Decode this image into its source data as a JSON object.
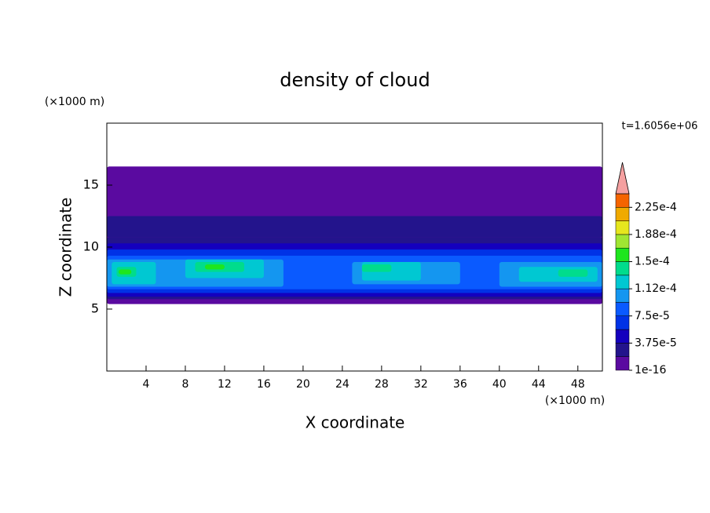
{
  "chart_data": {
    "type": "contour",
    "title": "density of cloud",
    "xlabel": "X coordinate",
    "ylabel": "Z coordinate",
    "x_unit": "(×1000 m)",
    "y_unit": "(×1000 m)",
    "time_label": "t=1.6056e+06",
    "xlim": [
      0,
      50.5
    ],
    "ylim": [
      0,
      20
    ],
    "xticks": [
      4,
      8,
      12,
      16,
      20,
      24,
      28,
      32,
      36,
      40,
      44,
      48
    ],
    "yticks": [
      5,
      10,
      15
    ],
    "levels": [
      1e-16,
      1.875e-05,
      3.75e-05,
      5.625e-05,
      7.5e-05,
      9.375e-05,
      0.0001125,
      0.00013125,
      0.00015,
      0.00016875,
      0.0001875,
      0.00020625,
      0.000225,
      0.00024375
    ],
    "colors": [
      "#5a0aa0",
      "#23148c",
      "#1400be",
      "#0032e6",
      "#0a5aff",
      "#1496f0",
      "#00c8d2",
      "#00dc8c",
      "#1ee61e",
      "#a0e632",
      "#e6e61e",
      "#f0aa00",
      "#f56400",
      "#e61e1e"
    ],
    "over_color": "#f5a0a0",
    "colorbar_ticks": [
      {
        "value": 1e-16,
        "label": "1e-16"
      },
      {
        "value": 3.75e-05,
        "label": "3.75e-5"
      },
      {
        "value": 7.5e-05,
        "label": "7.5e-5"
      },
      {
        "value": 0.0001125,
        "label": "1.12e-4"
      },
      {
        "value": 0.00015,
        "label": "1.5e-4"
      },
      {
        "value": 0.0001875,
        "label": "1.88e-4"
      },
      {
        "value": 0.000225,
        "label": "2.25e-4"
      }
    ],
    "regions": [
      {
        "x": [
          0,
          50.5
        ],
        "z": [
          5.4,
          16.5
        ],
        "value": 1e-05
      },
      {
        "x": [
          0,
          50.5
        ],
        "z": [
          10.8,
          12.5
        ],
        "value": 2.5e-05
      },
      {
        "x": [
          0,
          50.5
        ],
        "z": [
          5.8,
          10.8
        ],
        "value": 2.5e-05
      },
      {
        "x": [
          0,
          50.5
        ],
        "z": [
          6.0,
          10.3
        ],
        "value": 4.5e-05
      },
      {
        "x": [
          0,
          50.5
        ],
        "z": [
          6.3,
          9.8
        ],
        "value": 6.5e-05
      },
      {
        "x": [
          0,
          50.5
        ],
        "z": [
          6.6,
          9.3
        ],
        "value": 8.5e-05
      },
      {
        "x": [
          0,
          18
        ],
        "z": [
          6.8,
          9.0
        ],
        "value": 0.0001
      },
      {
        "x": [
          25,
          36
        ],
        "z": [
          7.0,
          8.8
        ],
        "value": 0.0001
      },
      {
        "x": [
          40,
          50.5
        ],
        "z": [
          6.8,
          8.8
        ],
        "value": 0.0001
      },
      {
        "x": [
          0.5,
          5
        ],
        "z": [
          7.0,
          8.8
        ],
        "value": 0.00012
      },
      {
        "x": [
          8,
          16
        ],
        "z": [
          7.5,
          9.0
        ],
        "value": 0.00012
      },
      {
        "x": [
          26,
          32
        ],
        "z": [
          7.3,
          8.8
        ],
        "value": 0.00012
      },
      {
        "x": [
          42,
          50
        ],
        "z": [
          7.2,
          8.4
        ],
        "value": 0.00012
      },
      {
        "x": [
          1,
          3
        ],
        "z": [
          7.6,
          8.4
        ],
        "value": 0.00014
      },
      {
        "x": [
          9,
          14
        ],
        "z": [
          8.0,
          8.8
        ],
        "value": 0.00014
      },
      {
        "x": [
          26,
          29
        ],
        "z": [
          8.0,
          8.6
        ],
        "value": 0.00014
      },
      {
        "x": [
          46,
          49
        ],
        "z": [
          7.6,
          8.2
        ],
        "value": 0.00014
      },
      {
        "x": [
          1.2,
          2.5
        ],
        "z": [
          7.8,
          8.2
        ],
        "value": 0.00016
      },
      {
        "x": [
          10,
          12
        ],
        "z": [
          8.2,
          8.6
        ],
        "value": 0.00016
      }
    ]
  }
}
